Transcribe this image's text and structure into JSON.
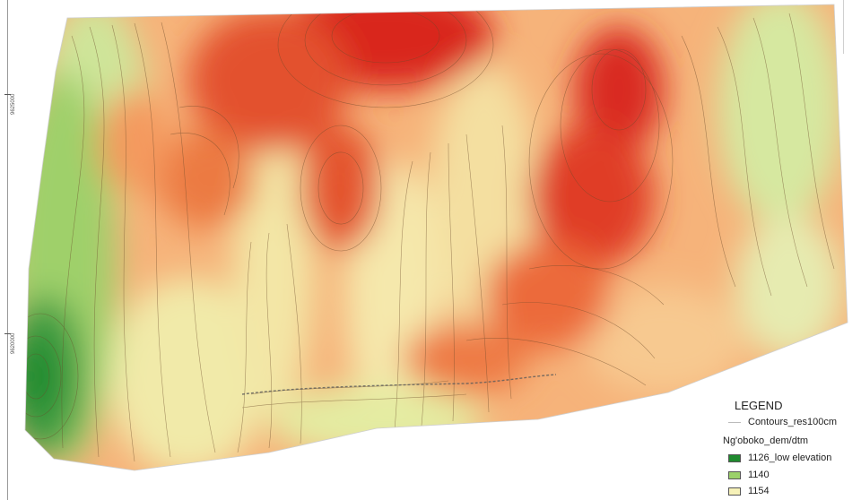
{
  "map": {
    "y_axis_labels": [
      "9625000",
      "9620000"
    ],
    "colors": {
      "low": "#1f8a2e",
      "mid_low": "#8ec95a",
      "mid": "#f3e9a9",
      "mid_high": "#f5a55f",
      "high": "#d9271f",
      "contour_line": "#6b4a2a"
    }
  },
  "legend": {
    "title": "LEGEND",
    "contour_label": "Contours_res100cm",
    "dem_label": "Ng'oboko_dem/dtm",
    "classes": [
      {
        "label": "1126_low elevation",
        "color": "#1f8a2e"
      },
      {
        "label": "1140",
        "color": "#9bd16a"
      },
      {
        "label": "1154",
        "color": "#f6f1b8"
      }
    ]
  }
}
